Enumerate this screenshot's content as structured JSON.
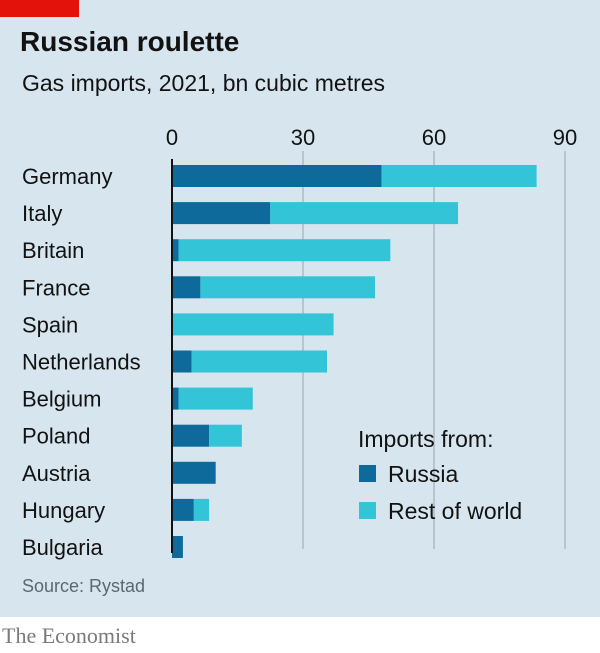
{
  "header": {
    "title": "Russian roulette",
    "subtitle": "Gas imports, 2021, bn cubic metres"
  },
  "footer": {
    "source": "Source: Rystad",
    "brand": "The Economist"
  },
  "colors": {
    "russia": "#0f6a9c",
    "rest": "#34c4d8",
    "panel": "#d7e5ee",
    "accent": "#e3120b"
  },
  "chart_data": {
    "type": "bar",
    "orientation": "horizontal",
    "stacked": true,
    "title": "Russian roulette",
    "subtitle": "Gas imports, 2021, bn cubic metres",
    "xlim": [
      0,
      90
    ],
    "ticks": [
      0,
      30,
      60,
      90
    ],
    "tick_labels": [
      "0",
      "30",
      "60",
      "90"
    ],
    "categories": [
      "Germany",
      "Italy",
      "Britain",
      "France",
      "Spain",
      "Netherlands",
      "Belgium",
      "Poland",
      "Austria",
      "Hungary",
      "Bulgaria"
    ],
    "series": [
      {
        "name": "Russia",
        "values": [
          48,
          22.5,
          1.5,
          6.5,
          0,
          4.5,
          1.5,
          8.5,
          10,
          5,
          2.5
        ]
      },
      {
        "name": "Rest of world",
        "values": [
          35.5,
          43,
          48.5,
          40,
          37,
          31,
          17,
          7.5,
          0,
          3.5,
          0
        ]
      }
    ],
    "legend": {
      "title": "Imports from:",
      "position": "bottom-right"
    },
    "grid": true
  }
}
